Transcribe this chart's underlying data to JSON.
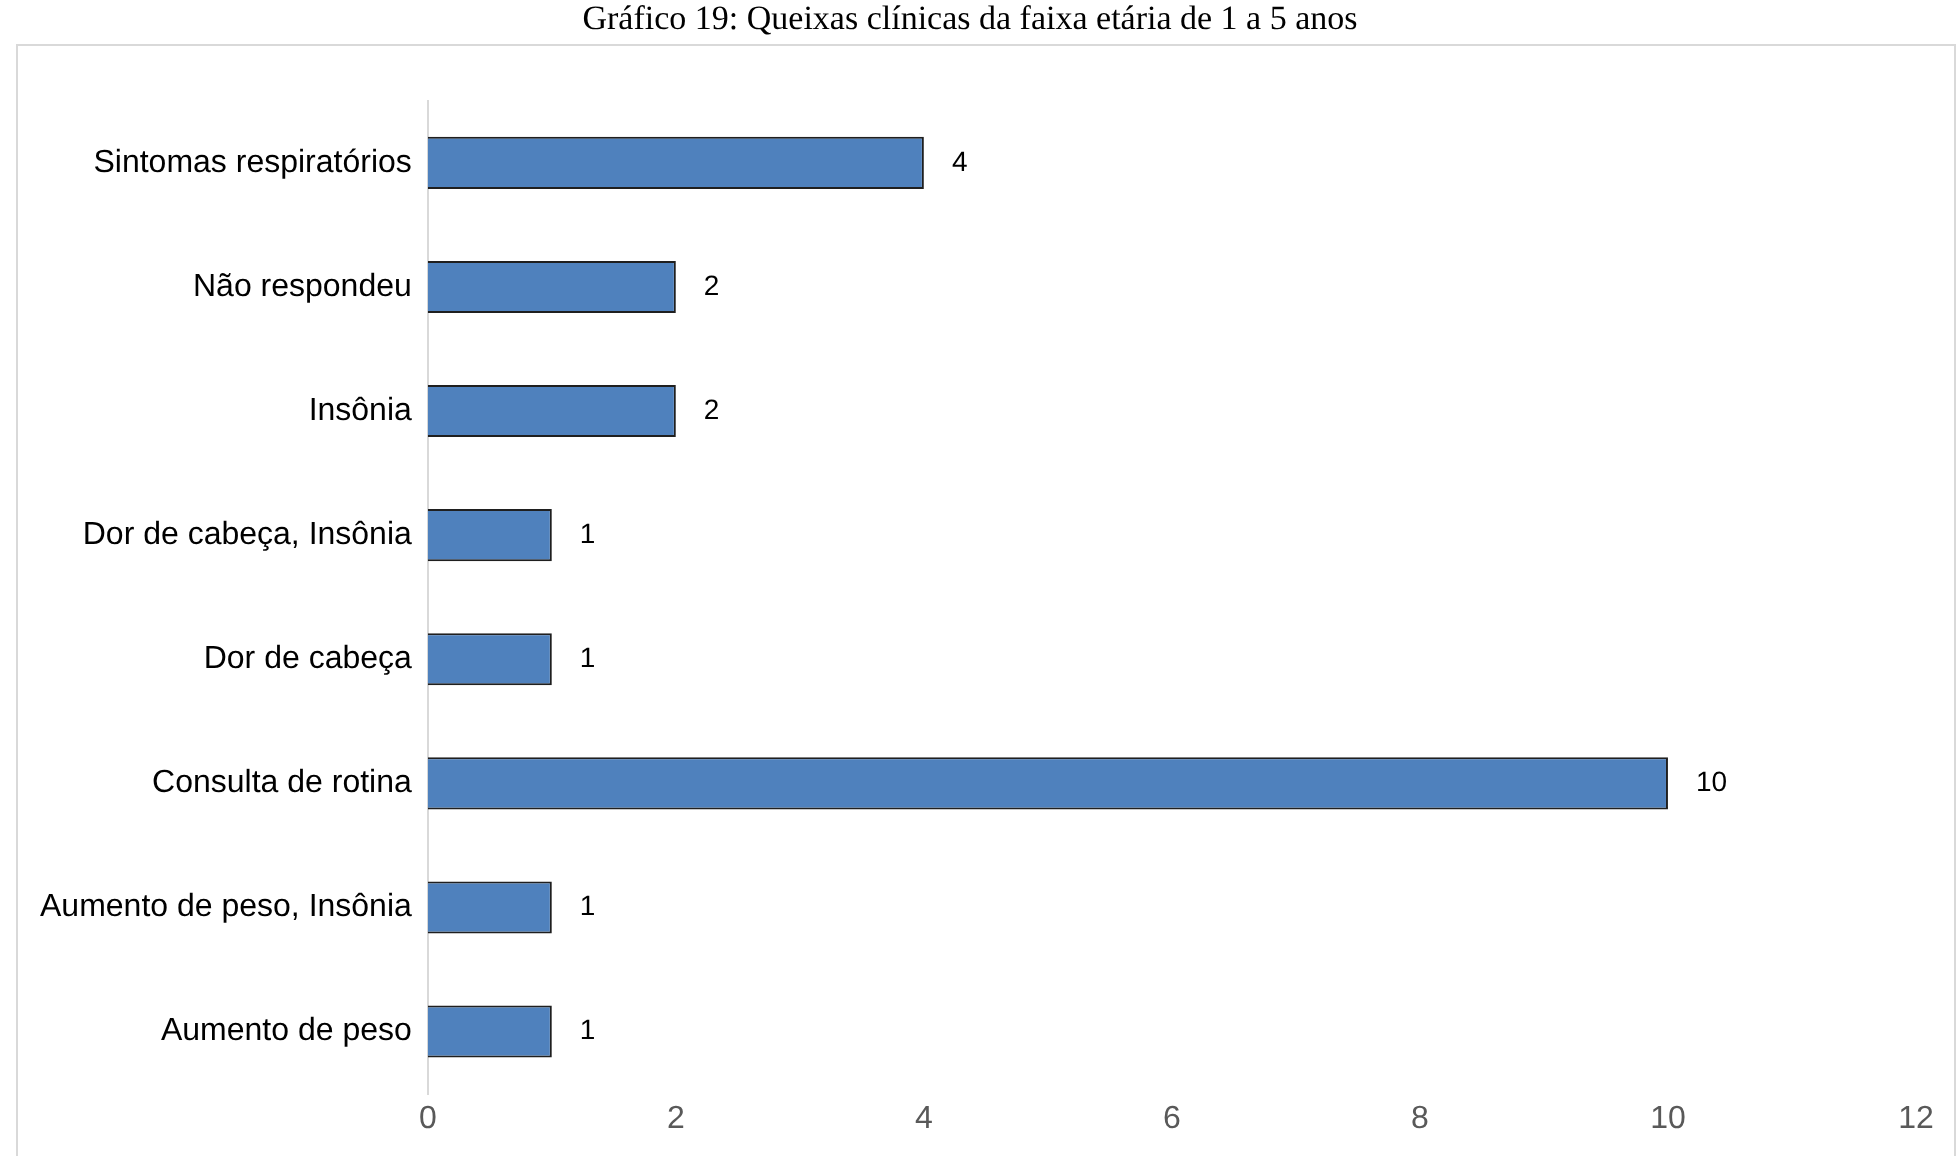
{
  "chart_data": {
    "type": "bar",
    "orientation": "horizontal",
    "title": "Gráfico 19: Queixas clínicas da faixa etária de 1 a 5 anos",
    "categories": [
      "Sintomas respiratórios",
      "Não respondeu",
      "Insônia",
      "Dor de cabeça, Insônia",
      "Dor de cabeça",
      "Consulta de rotina",
      "Aumento de peso, Insônia",
      "Aumento de peso"
    ],
    "values": [
      4,
      2,
      2,
      1,
      1,
      10,
      1,
      1
    ],
    "color": "#4f81bd",
    "data_labels": true,
    "xlim": [
      0,
      12
    ],
    "xticks": [
      0,
      2,
      4,
      6,
      8,
      10,
      12
    ],
    "grid": false,
    "legend": false
  }
}
